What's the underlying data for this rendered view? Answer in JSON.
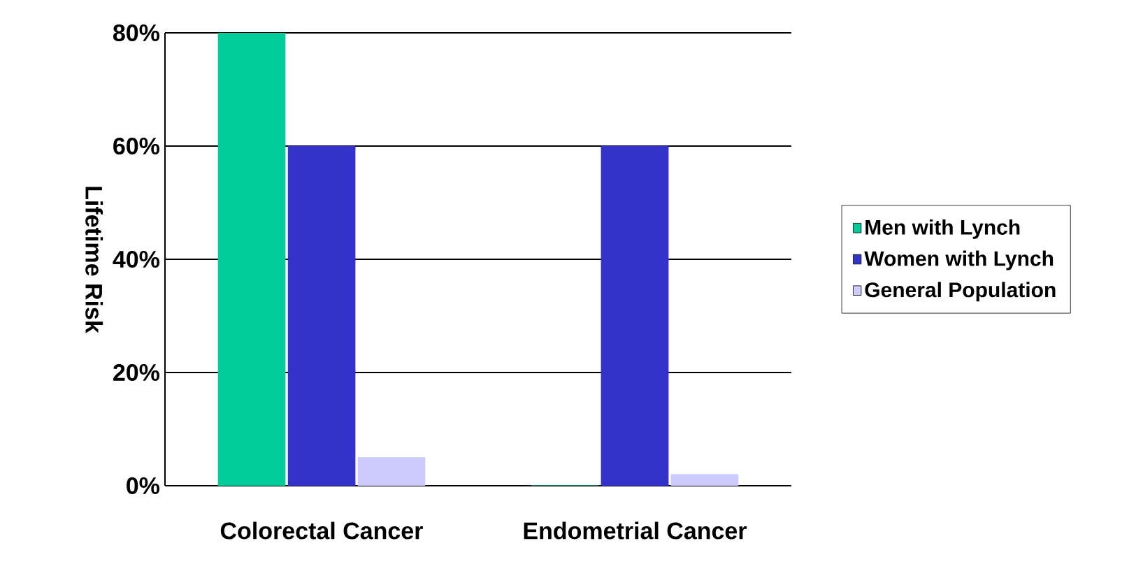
{
  "chart_data": {
    "type": "bar",
    "ylabel": "Lifetime Risk",
    "categories": [
      "Colorectal Cancer",
      "Endometrial Cancer"
    ],
    "series": [
      {
        "name": "Men with Lynch",
        "color": "#00cc99",
        "values": [
          80,
          0
        ]
      },
      {
        "name": "Women with Lynch",
        "color": "#3333cc",
        "values": [
          60,
          60
        ]
      },
      {
        "name": "General Population",
        "color": "#ccccff",
        "values": [
          5,
          2
        ]
      }
    ],
    "ylim": [
      0,
      80
    ],
    "yticks": [
      {
        "value": 0,
        "label": "0%"
      },
      {
        "value": 20,
        "label": "20%"
      },
      {
        "value": 40,
        "label": "40%"
      },
      {
        "value": 60,
        "label": "60%"
      },
      {
        "value": 80,
        "label": "80%"
      }
    ],
    "grid": "y",
    "legend": "right"
  }
}
